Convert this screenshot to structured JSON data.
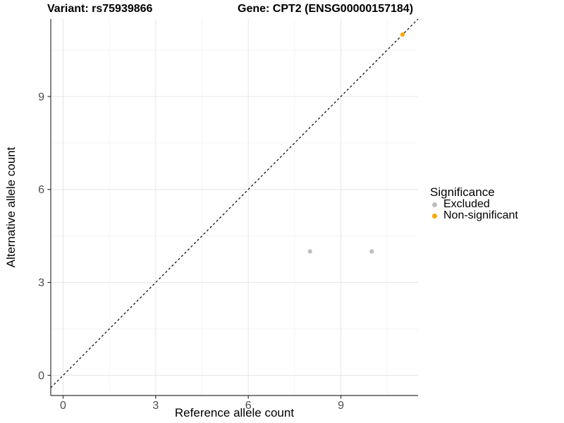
{
  "header": {
    "variant_title": "Variant: rs75939866",
    "gene_title": "Gene: CPT2 (ENSG00000157184)"
  },
  "chart_data": {
    "type": "scatter",
    "xlabel": "Reference allele count",
    "ylabel": "Alternative allele count",
    "xlim": [
      -0.4,
      11.5
    ],
    "ylim": [
      -0.65,
      11.5
    ],
    "xticks": [
      0,
      3,
      6,
      9
    ],
    "yticks": [
      0,
      3,
      6,
      9
    ],
    "xminor": [
      1.5,
      4.5,
      7.5,
      10.5
    ],
    "yminor": [
      1.5,
      4.5,
      7.5,
      10.5
    ],
    "grid": "major and minor gridlines, white background",
    "identity_line": {
      "equation": "y = x",
      "style": "dashed",
      "color": "#000000"
    },
    "series": [
      {
        "name": "Excluded",
        "color": "#BEBEBE",
        "points": [
          {
            "x": 8,
            "y": 4
          },
          {
            "x": 10,
            "y": 4
          }
        ]
      },
      {
        "name": "Non-significant",
        "color": "#FFA500",
        "points": [
          {
            "x": 11,
            "y": 11
          }
        ]
      }
    ],
    "legend": {
      "title": "Significance",
      "position": "right",
      "items": [
        {
          "label": "Excluded",
          "color": "#BEBEBE"
        },
        {
          "label": "Non-significant",
          "color": "#FFA500"
        }
      ]
    }
  },
  "colors": {
    "background": "#ffffff",
    "grid_major": "#e6e6e6",
    "grid_minor": "#f3f3f3",
    "axis_line": "#333333",
    "tick_mark": "#333333",
    "tick_label": "#4d4d4d",
    "text": "#000000"
  }
}
